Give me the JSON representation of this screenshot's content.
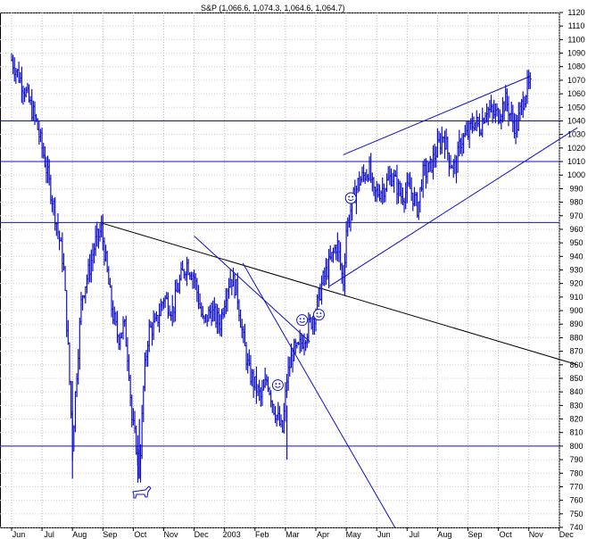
{
  "chart_data": {
    "type": "candlestick",
    "title": "S&P (1,066.6, 1,074.3, 1,064.6, 1,064.7)",
    "ylim": [
      740,
      1120
    ],
    "y_ticks": [
      740,
      750,
      760,
      770,
      780,
      790,
      800,
      810,
      820,
      830,
      840,
      850,
      860,
      870,
      880,
      890,
      900,
      910,
      920,
      930,
      940,
      950,
      960,
      970,
      980,
      990,
      1000,
      1010,
      1020,
      1030,
      1040,
      1050,
      1060,
      1070,
      1080,
      1090,
      1100,
      1110,
      1120
    ],
    "x_labels": [
      "Jun",
      "Jul",
      "Aug",
      "Sep",
      "Oct",
      "Nov",
      "Dec",
      "2003",
      "Feb",
      "Mar",
      "Apr",
      "May",
      "Jun",
      "Jul",
      "Aug",
      "Sep",
      "Oct",
      "Nov",
      "Dec"
    ],
    "grid": true,
    "bar_color": "#1010c8",
    "series": [
      {
        "values": [
          {
            "t": 0.0,
            "v": 1085
          },
          {
            "t": 0.4,
            "v": 1065
          },
          {
            "t": 0.8,
            "v": 1040
          },
          {
            "t": 1.1,
            "v": 1010
          },
          {
            "t": 1.4,
            "v": 975
          },
          {
            "t": 1.7,
            "v": 935
          },
          {
            "t": 1.85,
            "v": 875
          },
          {
            "t": 2.0,
            "v": 800
          },
          {
            "t": 2.1,
            "v": 840
          },
          {
            "t": 2.3,
            "v": 910
          },
          {
            "t": 2.55,
            "v": 930
          },
          {
            "t": 2.75,
            "v": 950
          },
          {
            "t": 2.95,
            "v": 960
          },
          {
            "t": 3.1,
            "v": 935
          },
          {
            "t": 3.3,
            "v": 900
          },
          {
            "t": 3.5,
            "v": 880
          },
          {
            "t": 3.7,
            "v": 890
          },
          {
            "t": 3.85,
            "v": 860
          },
          {
            "t": 3.95,
            "v": 820
          },
          {
            "t": 4.1,
            "v": 800
          },
          {
            "t": 4.2,
            "v": 780
          },
          {
            "t": 4.35,
            "v": 850
          },
          {
            "t": 4.5,
            "v": 885
          },
          {
            "t": 4.75,
            "v": 890
          },
          {
            "t": 5.0,
            "v": 910
          },
          {
            "t": 5.3,
            "v": 900
          },
          {
            "t": 5.5,
            "v": 920
          },
          {
            "t": 5.75,
            "v": 935
          },
          {
            "t": 6.0,
            "v": 925
          },
          {
            "t": 6.3,
            "v": 890
          },
          {
            "t": 6.55,
            "v": 900
          },
          {
            "t": 6.85,
            "v": 890
          },
          {
            "t": 7.05,
            "v": 915
          },
          {
            "t": 7.2,
            "v": 925
          },
          {
            "t": 7.4,
            "v": 915
          },
          {
            "t": 7.6,
            "v": 880
          },
          {
            "t": 7.8,
            "v": 855
          },
          {
            "t": 8.0,
            "v": 845
          },
          {
            "t": 8.2,
            "v": 835
          },
          {
            "t": 8.4,
            "v": 850
          },
          {
            "t": 8.6,
            "v": 830
          },
          {
            "t": 8.9,
            "v": 810
          },
          {
            "t": 9.05,
            "v": 850
          },
          {
            "t": 9.25,
            "v": 870
          },
          {
            "t": 9.4,
            "v": 870
          },
          {
            "t": 9.6,
            "v": 880
          },
          {
            "t": 9.8,
            "v": 890
          },
          {
            "t": 10.0,
            "v": 900
          },
          {
            "t": 10.2,
            "v": 920
          },
          {
            "t": 10.45,
            "v": 935
          },
          {
            "t": 10.7,
            "v": 950
          },
          {
            "t": 10.9,
            "v": 920
          },
          {
            "t": 11.0,
            "v": 960
          },
          {
            "t": 11.2,
            "v": 980
          },
          {
            "t": 11.4,
            "v": 995
          },
          {
            "t": 11.6,
            "v": 1000
          },
          {
            "t": 11.75,
            "v": 1005
          },
          {
            "t": 11.9,
            "v": 985
          },
          {
            "t": 12.2,
            "v": 990
          },
          {
            "t": 12.5,
            "v": 1000
          },
          {
            "t": 12.8,
            "v": 985
          },
          {
            "t": 13.1,
            "v": 990
          },
          {
            "t": 13.35,
            "v": 975
          },
          {
            "t": 13.5,
            "v": 1000
          },
          {
            "t": 13.75,
            "v": 1005
          },
          {
            "t": 14.0,
            "v": 1020
          },
          {
            "t": 14.2,
            "v": 1030
          },
          {
            "t": 14.4,
            "v": 1010
          },
          {
            "t": 14.6,
            "v": 1005
          },
          {
            "t": 14.75,
            "v": 1025
          },
          {
            "t": 15.0,
            "v": 1030
          },
          {
            "t": 15.2,
            "v": 1040
          },
          {
            "t": 15.4,
            "v": 1035
          },
          {
            "t": 15.6,
            "v": 1050
          },
          {
            "t": 15.8,
            "v": 1045
          },
          {
            "t": 16.0,
            "v": 1045
          },
          {
            "t": 16.25,
            "v": 1055
          },
          {
            "t": 16.45,
            "v": 1040
          },
          {
            "t": 16.6,
            "v": 1035
          },
          {
            "t": 16.8,
            "v": 1055
          },
          {
            "t": 16.95,
            "v": 1065
          },
          {
            "t": 17.05,
            "v": 1065
          }
        ]
      }
    ],
    "horizontal_lines": [
      1040,
      1010,
      965,
      800
    ],
    "trend_lines": [
      {
        "from": {
          "t": 2.9,
          "v": 965
        },
        "to": {
          "t": 18.6,
          "v": 860
        }
      },
      {
        "from": {
          "t": 6.0,
          "v": 955
        },
        "to": {
          "t": 9.8,
          "v": 877
        }
      },
      {
        "from": {
          "t": 7.6,
          "v": 935
        },
        "to": {
          "t": 12.6,
          "v": 740
        }
      },
      {
        "from": {
          "t": 10.45,
          "v": 918
        },
        "to": {
          "t": 18.6,
          "v": 1035
        }
      },
      {
        "from": {
          "t": 10.9,
          "v": 1015
        },
        "to": {
          "t": 17.05,
          "v": 1073
        }
      }
    ],
    "smiley_markers": [
      {
        "t": 8.75,
        "v": 845
      },
      {
        "t": 9.55,
        "v": 893
      },
      {
        "t": 10.1,
        "v": 897
      },
      {
        "t": 11.15,
        "v": 983
      }
    ],
    "bull_marker": {
      "t": 4.25,
      "v": 765
    }
  }
}
